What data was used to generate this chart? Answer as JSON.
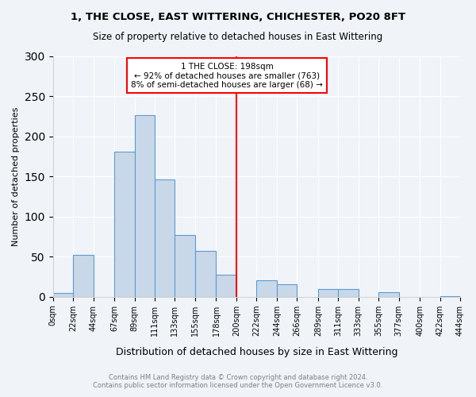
{
  "title": "1, THE CLOSE, EAST WITTERING, CHICHESTER, PO20 8FT",
  "subtitle": "Size of property relative to detached houses in East Wittering",
  "xlabel": "Distribution of detached houses by size in East Wittering",
  "ylabel": "Number of detached properties",
  "bin_edges": [
    0,
    22,
    44,
    67,
    89,
    111,
    133,
    155,
    178,
    200,
    222,
    244,
    266,
    289,
    311,
    333,
    355,
    377,
    400,
    422,
    444
  ],
  "bin_labels": [
    "0sqm",
    "22sqm",
    "44sqm",
    "67sqm",
    "89sqm",
    "111sqm",
    "133sqm",
    "155sqm",
    "178sqm",
    "200sqm",
    "222sqm",
    "244sqm",
    "266sqm",
    "289sqm",
    "311sqm",
    "333sqm",
    "355sqm",
    "377sqm",
    "400sqm",
    "422sqm",
    "444sqm"
  ],
  "bar_heights": [
    5,
    52,
    0,
    181,
    226,
    146,
    77,
    57,
    28,
    0,
    21,
    16,
    0,
    10,
    10,
    0,
    6,
    0,
    0,
    1,
    0
  ],
  "bar_color": "#c8d8e8",
  "bar_edge_color": "#5b9bd5",
  "vline_x": 200,
  "vline_color": "red",
  "annotation_title": "1 THE CLOSE: 198sqm",
  "annotation_line1": "← 92% of detached houses are smaller (763)",
  "annotation_line2": "8% of semi-detached houses are larger (68) →",
  "annotation_box_color": "red",
  "ylim": [
    0,
    300
  ],
  "yticks": [
    0,
    50,
    100,
    150,
    200,
    250,
    300
  ],
  "background_color": "#f0f4f8",
  "plot_bg_color": "#f0f4f8",
  "footer_line1": "Contains HM Land Registry data © Crown copyright and database right 2024.",
  "footer_line2": "Contains public sector information licensed under the Open Government Licence v3.0."
}
